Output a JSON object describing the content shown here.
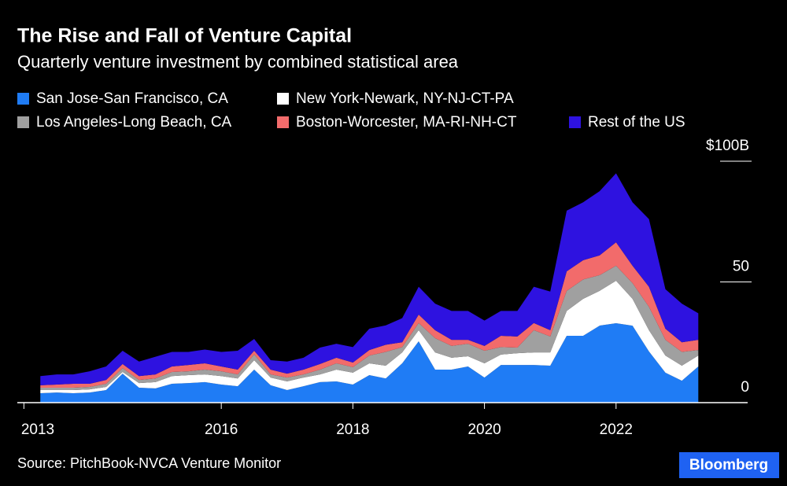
{
  "chart_data": {
    "type": "stacked_area",
    "title": "The Rise and Fall of Venture Capital",
    "subtitle": "Quarterly venture investment by combined statistical area",
    "source": "Source: PitchBook-NVCA Venture Monitor",
    "brand": "Bloomberg",
    "x": [
      2013.25,
      2013.5,
      2013.75,
      2014,
      2014.25,
      2014.5,
      2014.75,
      2015,
      2015.25,
      2015.5,
      2015.75,
      2016,
      2016.25,
      2016.5,
      2016.75,
      2017,
      2017.25,
      2017.5,
      2017.75,
      2018,
      2018.25,
      2018.5,
      2018.75,
      2019,
      2019.25,
      2019.5,
      2019.75,
      2020,
      2020.25,
      2020.5,
      2020.75,
      2021,
      2021.25,
      2021.5,
      2021.75,
      2022,
      2022.25,
      2022.5,
      2022.75,
      2023,
      2023.25
    ],
    "xlim": [
      2012.9,
      2024
    ],
    "xticks": [
      2013,
      2016,
      2018,
      2020,
      2022
    ],
    "ylim": [
      0,
      100
    ],
    "yticks": [
      0,
      50,
      {
        "value": 100,
        "label": "$100B"
      }
    ],
    "series": [
      {
        "name": "San Jose-San Francisco, CA",
        "color": "#1f7cf5",
        "values": [
          3.9,
          4.2,
          3.9,
          4.2,
          5.2,
          12,
          6.2,
          5.9,
          7.8,
          8.1,
          8.5,
          7.5,
          6.8,
          13.7,
          7.2,
          5.2,
          6.8,
          8.5,
          8.8,
          7.5,
          11.4,
          10,
          16.3,
          25.4,
          13.7,
          13.7,
          15,
          10.4,
          15.6,
          15.6,
          15.6,
          15.3,
          27.7,
          27.7,
          31.9,
          32.9,
          31.9,
          21.2,
          12.4,
          9.1,
          15
        ]
      },
      {
        "name": "New York-Newark, NY-NJ-CT-PA",
        "color": "#ffffff",
        "values": [
          1.3,
          1.0,
          1.3,
          1.3,
          1.3,
          0.7,
          1.9,
          2.6,
          3.2,
          3.3,
          3.2,
          3.5,
          3.2,
          3.9,
          3.2,
          3.6,
          3.6,
          3.2,
          4.9,
          4.9,
          4.9,
          5.3,
          4.5,
          4.6,
          7.1,
          4.9,
          4.2,
          5.9,
          4.3,
          4.9,
          5.2,
          5.5,
          10.3,
          15.3,
          14.4,
          17.6,
          11.1,
          8.8,
          7.1,
          6.2,
          4.5
        ]
      },
      {
        "name": "Los Angeles-Long Beach, CA",
        "color": "#a0a0a0",
        "values": [
          1.0,
          1.0,
          1.0,
          1.0,
          1.3,
          1.6,
          1.3,
          1.5,
          1.7,
          1.6,
          2.0,
          2.0,
          1.7,
          2.4,
          1.3,
          1.6,
          1.3,
          2.0,
          2.6,
          2.3,
          3.2,
          5.7,
          2.2,
          3.0,
          5.9,
          4.9,
          5.2,
          5.2,
          3.1,
          2.3,
          9.2,
          6.6,
          8.3,
          8.0,
          6.5,
          6.2,
          6.5,
          9.7,
          6.5,
          5.7,
          2.3
        ]
      },
      {
        "name": "Boston-Worcester, MA-RI-NH-CT",
        "color": "#f26b6b",
        "values": [
          1.0,
          1.3,
          1.6,
          1.3,
          1.6,
          1.7,
          1.6,
          1.7,
          2.3,
          2.6,
          2.6,
          2.0,
          2.0,
          1.5,
          2.0,
          1.6,
          2.0,
          2.3,
          2.3,
          1.9,
          2.3,
          3.0,
          2.0,
          3.5,
          3.3,
          2.5,
          1.6,
          2.0,
          4.7,
          4.6,
          3.0,
          2.6,
          8.1,
          8.0,
          8.2,
          9.7,
          7.2,
          8.3,
          4.6,
          4.0,
          4.2
        ]
      },
      {
        "name": "Rest of the US",
        "color": "#2e12e0",
        "values": [
          3.8,
          4.2,
          3.9,
          5.2,
          5.6,
          5.5,
          6.0,
          7.3,
          6.0,
          5.4,
          5.7,
          6.0,
          7.8,
          4.9,
          3.9,
          5.0,
          4.9,
          6.8,
          5.8,
          6.4,
          8.8,
          8.0,
          10.0,
          11.5,
          11.0,
          12.0,
          12.0,
          10.5,
          10.3,
          10.6,
          15.0,
          16.0,
          25.1,
          24.0,
          26.6,
          28.6,
          26.3,
          28.0,
          16.4,
          16.0,
          11.0
        ]
      }
    ]
  }
}
